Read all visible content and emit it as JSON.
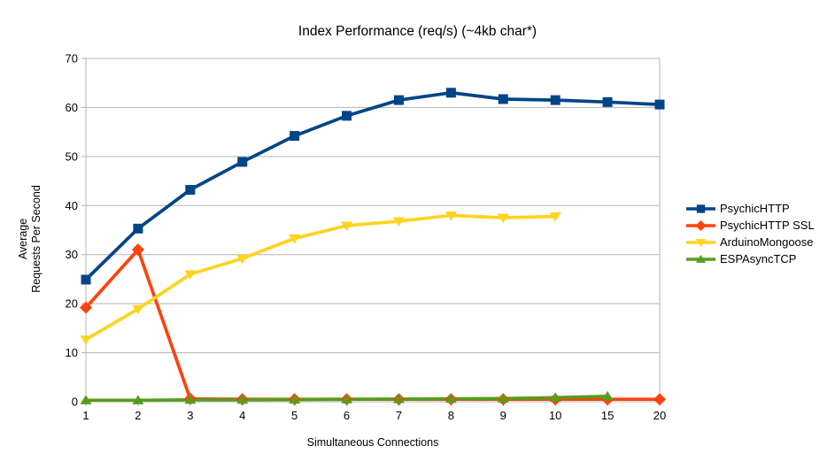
{
  "chart_data": {
    "type": "line",
    "title": "Index Performance (req/s) (~4kb char*)",
    "xlabel": "Simultaneous Connections",
    "ylabel_lines": [
      "Average",
      "Requests Per Second"
    ],
    "categories": [
      "1",
      "2",
      "3",
      "4",
      "5",
      "6",
      "7",
      "8",
      "9",
      "10",
      "15",
      "20"
    ],
    "y_ticks": [
      0,
      10,
      20,
      30,
      40,
      50,
      60,
      70
    ],
    "ylim": [
      0,
      70
    ],
    "grid": "horizontal",
    "legend_position": "right",
    "series": [
      {
        "name": "PsychicHTTP",
        "color": "#004586",
        "marker": "square",
        "values": [
          24.9,
          35.3,
          43.2,
          48.9,
          54.2,
          58.3,
          61.5,
          63.0,
          61.7,
          61.5,
          61.1,
          60.6
        ]
      },
      {
        "name": "PsychicHTTP SSL",
        "color": "#ff420e",
        "marker": "diamond",
        "values": [
          19.2,
          31.0,
          0.6,
          0.5,
          0.5,
          0.5,
          0.5,
          0.5,
          0.5,
          0.5,
          0.5,
          0.5
        ]
      },
      {
        "name": "ArduinoMongoose",
        "color": "#ffd320",
        "marker": "triangle-down",
        "values": [
          12.7,
          18.9,
          26.0,
          29.2,
          33.3,
          35.9,
          36.8,
          38.0,
          37.5,
          37.8,
          null,
          null
        ]
      },
      {
        "name": "ESPAsyncTCP",
        "color": "#579d1c",
        "marker": "triangle-up",
        "values": [
          0.3,
          0.3,
          0.4,
          0.4,
          0.45,
          0.5,
          0.55,
          0.6,
          0.65,
          0.85,
          1.1,
          null
        ]
      }
    ]
  },
  "colors": {
    "axis": "#b3b3b3",
    "grid": "#b3b3b3",
    "text": "#000000",
    "background": "#ffffff"
  }
}
